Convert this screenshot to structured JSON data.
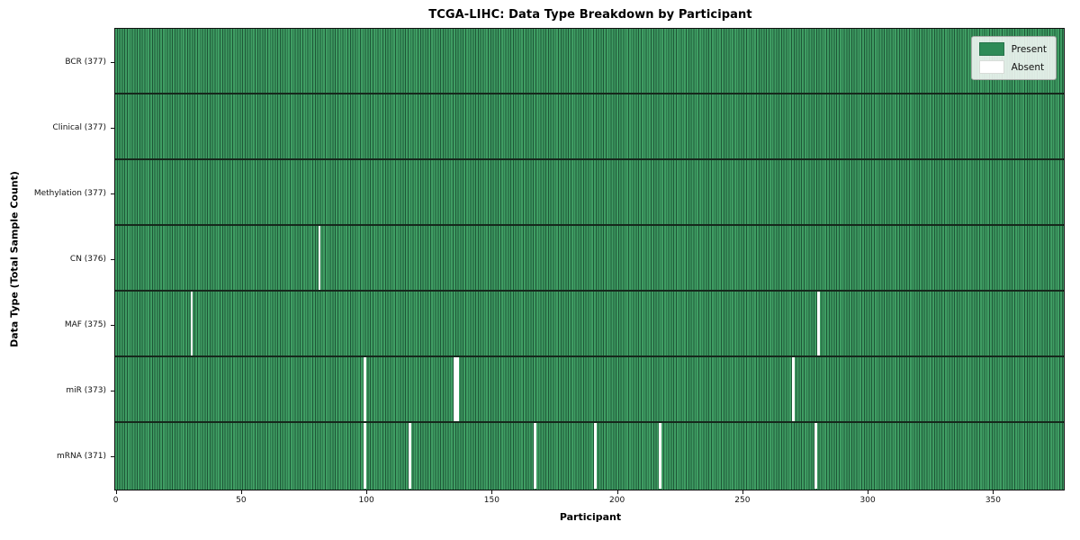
{
  "chart_data": {
    "type": "heatmap",
    "title": "TCGA-LIHC: Data Type Breakdown by Participant",
    "xlabel": "Participant",
    "ylabel": "Data Type (Total Sample Count)",
    "xlim": [
      0,
      378
    ],
    "x_ticks": [
      0,
      50,
      100,
      150,
      200,
      250,
      300,
      350
    ],
    "n_participants": 377,
    "grid": "per-participant vertical gridlines",
    "legend_position": "upper right",
    "legend": [
      {
        "label": "Present",
        "color": "#2e8b57"
      },
      {
        "label": "Absent",
        "color": "#ffffff"
      }
    ],
    "rows": [
      {
        "label": "BCR",
        "count": 377,
        "tick_label": "BCR (377)",
        "absent_participants": []
      },
      {
        "label": "Clinical",
        "count": 377,
        "tick_label": "Clinical (377)",
        "absent_participants": []
      },
      {
        "label": "Methylation",
        "count": 377,
        "tick_label": "Methylation (377)",
        "absent_participants": []
      },
      {
        "label": "CN",
        "count": 376,
        "tick_label": "CN (376)",
        "absent_participants": [
          81
        ]
      },
      {
        "label": "MAF",
        "count": 375,
        "tick_label": "MAF (375)",
        "absent_participants": [
          30,
          280
        ]
      },
      {
        "label": "miR",
        "count": 373,
        "tick_label": "miR (373)",
        "absent_participants": [
          99,
          135,
          136,
          270
        ]
      },
      {
        "label": "mRNA",
        "count": 371,
        "tick_label": "mRNA (371)",
        "absent_participants": [
          99,
          117,
          167,
          191,
          217,
          279
        ]
      }
    ],
    "colors": {
      "cell_present": "#3f9d63",
      "cell_grid_line": "#1e5737",
      "cell_absent": "#ffffff",
      "row_divider": "#16281c",
      "legend_present_swatch": "#2e8b57",
      "legend_absent_swatch": "#ffffff",
      "axis_border": "#111111"
    }
  }
}
